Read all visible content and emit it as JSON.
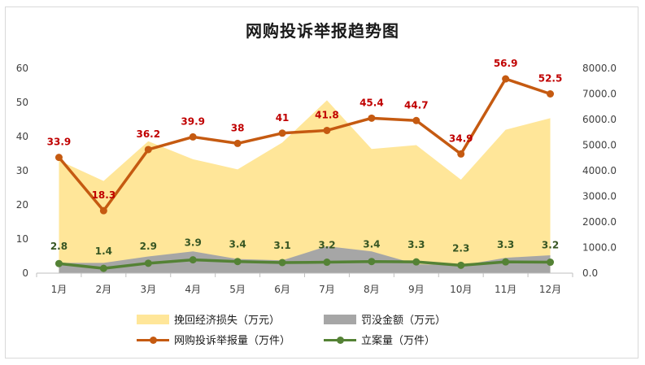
{
  "chart_data": {
    "type": "line",
    "title": "网购投诉举报趋势图",
    "categories": [
      "1月",
      "2月",
      "3月",
      "4月",
      "5月",
      "6月",
      "7月",
      "8月",
      "9月",
      "10月",
      "11月",
      "12月"
    ],
    "left_axis": {
      "ticks": [
        "0",
        "10",
        "20",
        "30",
        "40",
        "50",
        "60"
      ],
      "ylim": [
        0,
        60
      ]
    },
    "right_axis": {
      "ticks": [
        "0.0",
        "1000.0",
        "2000.0",
        "3000.0",
        "4000.0",
        "5000.0",
        "6000.0",
        "7000.0",
        "8000.0"
      ],
      "ylim": [
        0,
        8000
      ]
    },
    "series": [
      {
        "name": "挽回经济损失（万元）",
        "kind": "area",
        "axis": "right",
        "color": "#ffe699",
        "values": [
          4400,
          3600,
          5150,
          4450,
          4050,
          5100,
          6750,
          4850,
          5000,
          3650,
          5600,
          6050
        ]
      },
      {
        "name": "罚没金额（万元）",
        "kind": "area",
        "axis": "right",
        "color": "#a6a6a6",
        "values": [
          400,
          400,
          650,
          850,
          550,
          500,
          1050,
          850,
          350,
          300,
          600,
          700
        ]
      },
      {
        "name": "网购投诉举报量（万件）",
        "kind": "line",
        "axis": "left",
        "color": "#c55a11",
        "label_color": "#c00000",
        "values": [
          33.9,
          18.3,
          36.2,
          39.9,
          38,
          41,
          41.8,
          45.4,
          44.7,
          34.9,
          56.9,
          52.5
        ]
      },
      {
        "name": "立案量（万件）",
        "kind": "line",
        "axis": "left",
        "color": "#548235",
        "label_color": "#375623",
        "values": [
          2.8,
          1.4,
          2.9,
          3.9,
          3.4,
          3.1,
          3.2,
          3.4,
          3.3,
          2.3,
          3.3,
          3.2
        ]
      }
    ],
    "grid": false,
    "legend": "bottom"
  }
}
